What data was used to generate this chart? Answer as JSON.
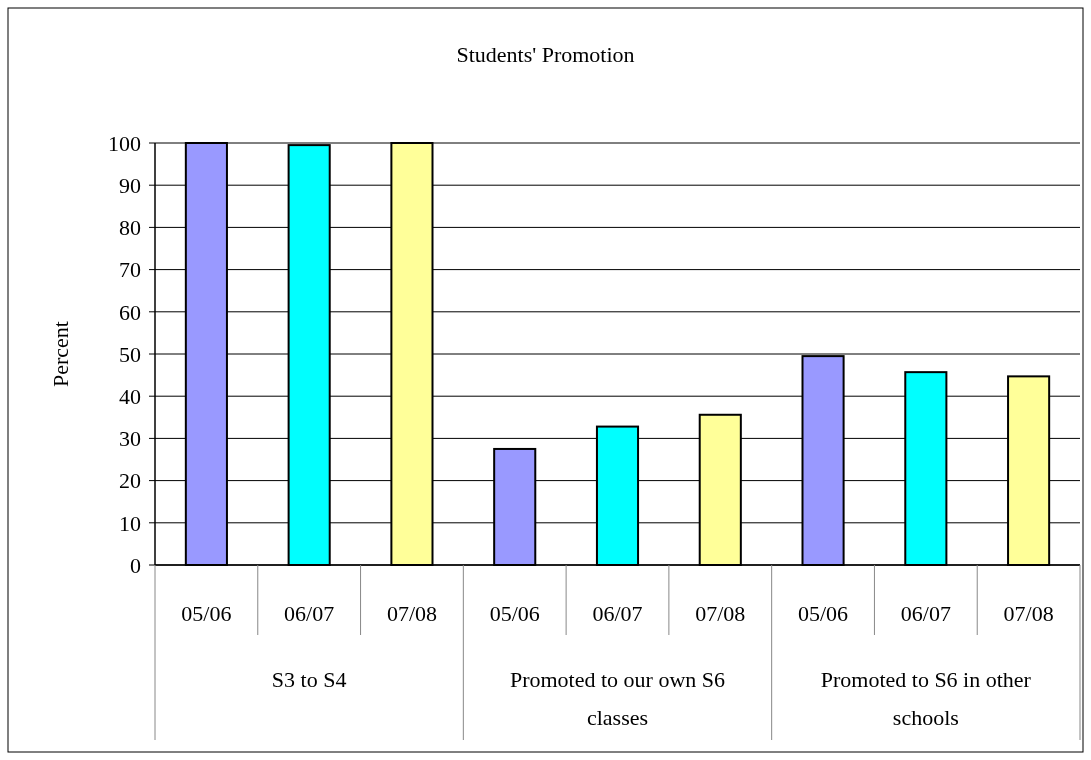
{
  "chart_data": {
    "type": "bar",
    "title": "Students' Promotion",
    "ylabel": "Percent",
    "categories": [
      "S3 to S4",
      "Promoted to our own S6 classes",
      "Promoted to S6 in other schools"
    ],
    "series": [
      {
        "name": "05/06",
        "color": "#9999ff",
        "values": [
          100,
          27.5,
          49.5
        ]
      },
      {
        "name": "06/07",
        "color": "#00ffff",
        "values": [
          99.5,
          32.8,
          45.7
        ]
      },
      {
        "name": "07/08",
        "color": "#ffff99",
        "values": [
          100,
          35.6,
          44.7
        ]
      }
    ],
    "ylim": [
      0,
      100
    ],
    "yticks": [
      0,
      10,
      20,
      30,
      40,
      50,
      60,
      70,
      80,
      90,
      100
    ],
    "grid": "y"
  }
}
